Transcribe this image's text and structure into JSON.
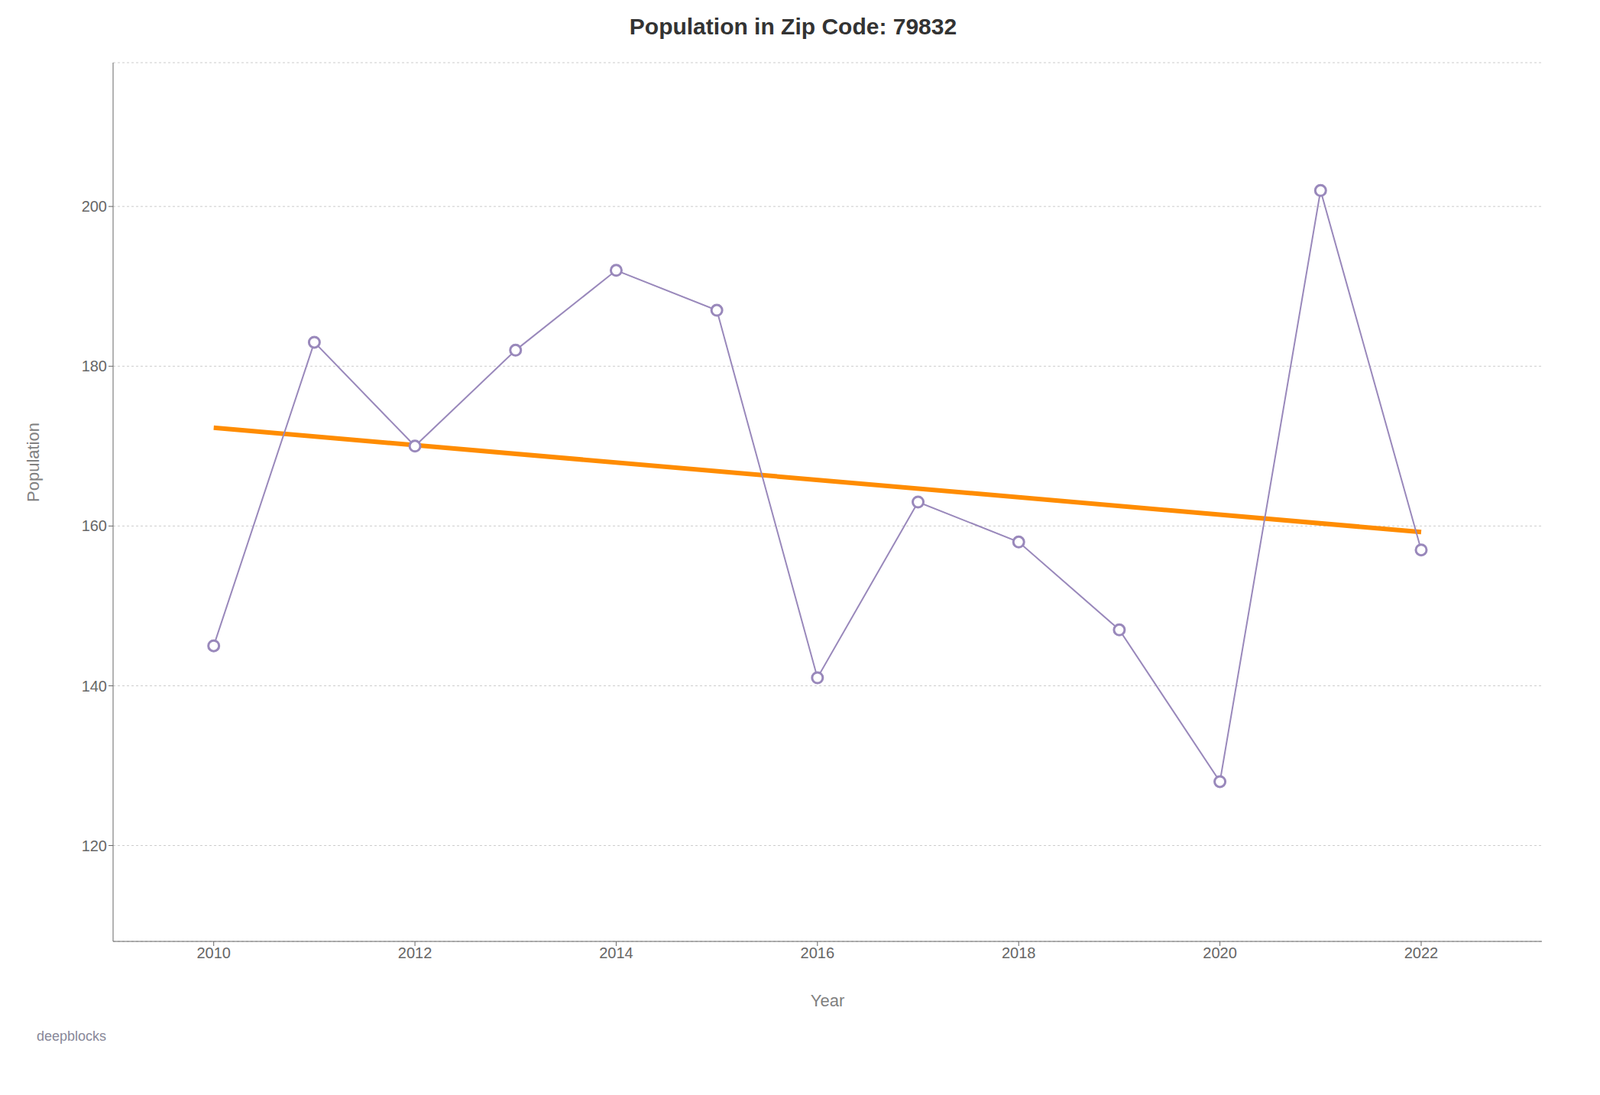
{
  "chart_data": {
    "type": "line",
    "title": "Population in Zip Code: 79832",
    "xlabel": "Year",
    "ylabel": "Population",
    "x": [
      2010,
      2011,
      2012,
      2013,
      2014,
      2015,
      2016,
      2017,
      2018,
      2019,
      2020,
      2021,
      2022
    ],
    "series": [
      {
        "color": "#9988bb",
        "marker": "circle",
        "line_style": "solid",
        "values": [
          145,
          183,
          170,
          182,
          192,
          187,
          141,
          163,
          158,
          147,
          128,
          202,
          157
        ]
      }
    ],
    "trend_line": {
      "color": "#ff8c00",
      "x": [
        2010,
        2022
      ],
      "values": [
        172.296703297,
        159.241758242
      ]
    },
    "xlim": [
      2009.0,
      2023.2
    ],
    "xticks": [
      2010,
      2012,
      2014,
      2016,
      2018,
      2020,
      2022
    ],
    "ylim": [
      108,
      218
    ],
    "yticks": [
      120,
      140,
      160,
      180,
      200
    ],
    "grid": "y",
    "watermark": "deepblocks"
  }
}
